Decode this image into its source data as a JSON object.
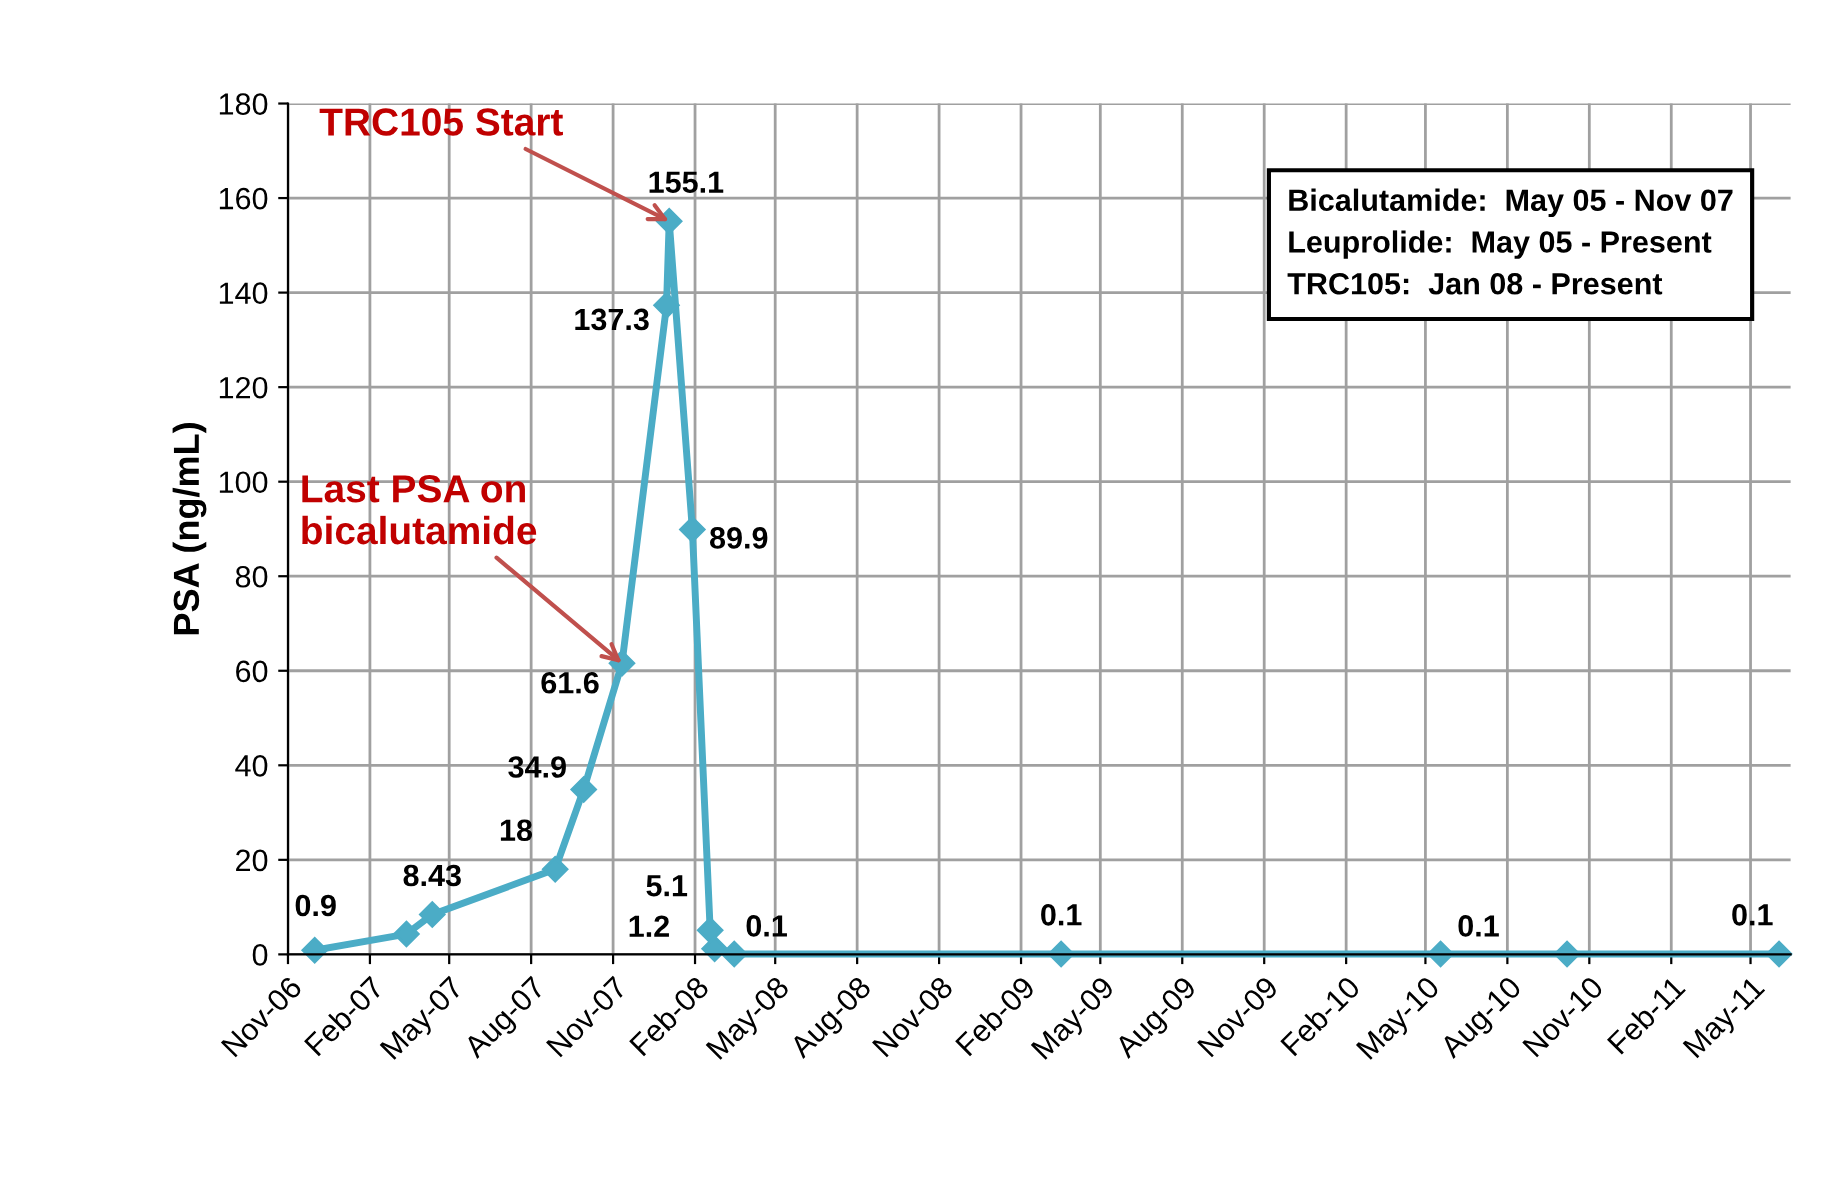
{
  "chart_data": {
    "type": "line",
    "ylabel": "PSA (ng/mL)",
    "x": [
      "2006-12-01",
      "2007-03-14",
      "2007-04-12",
      "2007-08-28",
      "2007-09-29",
      "2007-11-11",
      "2007-12-31",
      "2008-01-03",
      "2008-01-29",
      "2008-02-18",
      "2008-02-23",
      "2008-03-16",
      "2009-03-18",
      "2010-05-18",
      "2010-10-07",
      "2011-06-02"
    ],
    "series": [
      {
        "color": "#4bacc6",
        "values": [
          0.9,
          4.3,
          8.43,
          18,
          34.9,
          61.6,
          137.3,
          155.1,
          89.9,
          5.1,
          1.2,
          0.1,
          0.1,
          0.1,
          0.1,
          0.1
        ],
        "value_labels": [
          "0.9",
          null,
          "8.43",
          "18",
          "34.9",
          "61.6",
          "137.3",
          "155.1",
          "89.9",
          "5.1",
          "1.2",
          "0.1",
          "0.1",
          "0.1",
          null,
          "0.1"
        ]
      }
    ],
    "marker": "diamond",
    "line_style": "solid",
    "grid": true,
    "legend": false,
    "xlim": [
      "2006-11-01",
      "2011-06-15"
    ],
    "xticks": [
      {
        "value": "2006-11-01",
        "label": "Nov-06"
      },
      {
        "value": "2007-02-01",
        "label": "Feb-07"
      },
      {
        "value": "2007-05-01",
        "label": "May-07"
      },
      {
        "value": "2007-08-01",
        "label": "Aug-07"
      },
      {
        "value": "2007-11-01",
        "label": "Nov-07"
      },
      {
        "value": "2008-02-01",
        "label": "Feb-08"
      },
      {
        "value": "2008-05-01",
        "label": "May-08"
      },
      {
        "value": "2008-08-01",
        "label": "Aug-08"
      },
      {
        "value": "2008-11-01",
        "label": "Nov-08"
      },
      {
        "value": "2009-02-01",
        "label": "Feb-09"
      },
      {
        "value": "2009-05-01",
        "label": "May-09"
      },
      {
        "value": "2009-08-01",
        "label": "Aug-09"
      },
      {
        "value": "2009-11-01",
        "label": "Nov-09"
      },
      {
        "value": "2010-02-01",
        "label": "Feb-10"
      },
      {
        "value": "2010-05-01",
        "label": "May-10"
      },
      {
        "value": "2010-08-01",
        "label": "Aug-10"
      },
      {
        "value": "2010-11-01",
        "label": "Nov-10"
      },
      {
        "value": "2011-02-01",
        "label": "Feb-11"
      },
      {
        "value": "2011-05-01",
        "label": "May-11"
      }
    ],
    "ylim": [
      0,
      180
    ],
    "yticks": [
      0,
      20,
      40,
      60,
      80,
      100,
      120,
      140,
      160,
      180
    ],
    "annotations": [
      {
        "text": "TRC105 Start",
        "x": "2008-01-03",
        "y": 155.1
      },
      {
        "text": "Last PSA on\nbicalutamide",
        "x": "2007-11-11",
        "y": 61.6
      },
      "Bicalutamide:  May 05 - Nov 07\nLeuprolide:  May 05 - Present\nTRC105:  Jan 08 - Present"
    ]
  }
}
